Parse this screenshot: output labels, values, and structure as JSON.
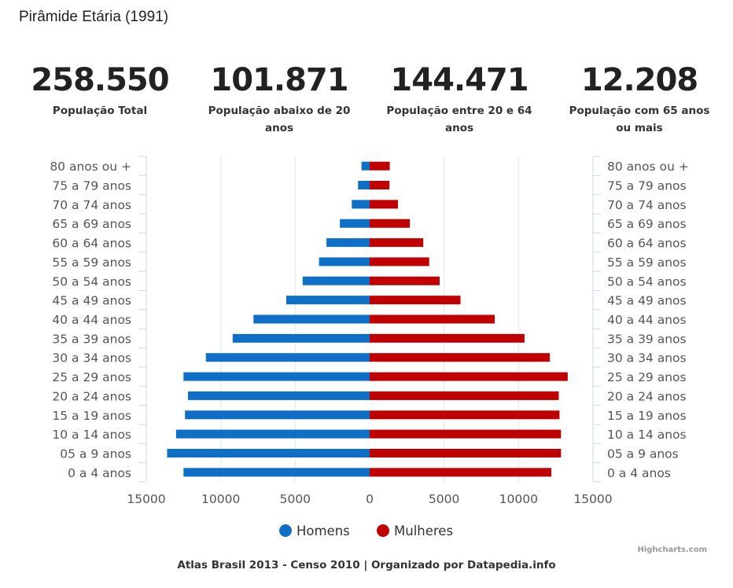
{
  "page_title": "Pirâmide Etária (1991)",
  "stats": [
    {
      "value": "258.550",
      "label": "População Total"
    },
    {
      "value": "101.871",
      "label": "População abaixo de 20 anos"
    },
    {
      "value": "144.471",
      "label": "População entre 20 e 64 anos"
    },
    {
      "value": "12.208",
      "label": "População com 65 anos ou mais"
    }
  ],
  "chart_data": {
    "type": "bar",
    "orientation": "horizontal-diverging",
    "categories": [
      "80 anos ou +",
      "75 a 79 anos",
      "70 a 74 anos",
      "65 a 69 anos",
      "60 a 64 anos",
      "55 a 59 anos",
      "50 a 54 anos",
      "45 a 49 anos",
      "40 a 44 anos",
      "35 a 39 anos",
      "30 a 34 anos",
      "25 a 29 anos",
      "20 a 24 anos",
      "15 a 19 anos",
      "10 a 14 anos",
      "05 a 9 anos",
      "0 a 4 anos"
    ],
    "series": [
      {
        "name": "Homens",
        "color": "#0f6fc6",
        "values": [
          550,
          780,
          1200,
          2000,
          2900,
          3400,
          4500,
          5600,
          7800,
          9200,
          11000,
          12500,
          12200,
          12400,
          13000,
          13600,
          12500
        ]
      },
      {
        "name": "Mulheres",
        "color": "#c00000",
        "values": [
          1350,
          1330,
          1900,
          2700,
          3600,
          4000,
          4700,
          6100,
          8400,
          10400,
          12100,
          13300,
          12700,
          12750,
          12850,
          12850,
          12200
        ]
      }
    ],
    "x_ticks": [
      "15000",
      "10000",
      "5000",
      "0",
      "5000",
      "10000",
      "15000"
    ],
    "xlim": [
      -15000,
      15000
    ],
    "legend_position": "bottom-center",
    "grid": true
  },
  "legend": [
    {
      "label": "Homens",
      "color": "#0f6fc6"
    },
    {
      "label": "Mulheres",
      "color": "#c00000"
    }
  ],
  "credits": "Highcharts.com",
  "footer": "Atlas Brasil 2013 - Censo 2010 | Organizado por Datapedia.info"
}
